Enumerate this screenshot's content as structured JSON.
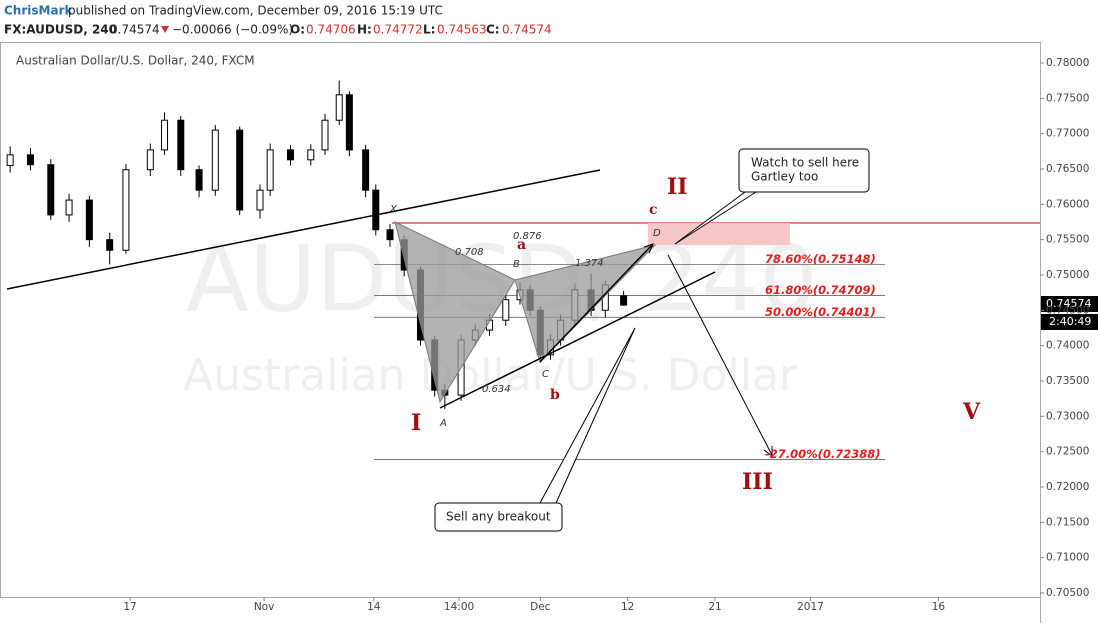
{
  "header": {
    "author": "ChrisMark",
    "published": "published on TradingView.com, December 09, 2016 15:19 UTC",
    "symbol": "FX:AUDUSD, 240",
    "change": "−0.00066 (−0.09%)",
    "o_label": "O:",
    "h_label": "H:",
    "l_label": "L:",
    "c_label": "C:"
  },
  "chart_data": {
    "type": "candlestick",
    "title": "Australian Dollar/U.S. Dollar, 240, FXCM",
    "watermark": "AUDUSD, 240",
    "watermark_sub": "Australian Dollar/U.S. Dollar",
    "countdown": "2:40:49",
    "x": [
      -59,
      -49,
      -39,
      -30,
      -20,
      -10,
      -2,
      10,
      17,
      25,
      34,
      42,
      54,
      64,
      69,
      79,
      89,
      96,
      103,
      108,
      116,
      121,
      128,
      135,
      143,
      150,
      155,
      163,
      170,
      177,
      185,
      192,
      197,
      202,
      207,
      212,
      219,
      227,
      234,
      243
    ],
    "open": [
      0.7655,
      0.767,
      0.7656,
      0.7585,
      0.7606,
      0.755,
      0.7535,
      0.7649,
      0.7677,
      0.7719,
      0.7649,
      0.762,
      0.7705,
      0.7592,
      0.762,
      0.7677,
      0.7663,
      0.7677,
      0.7719,
      0.7755,
      0.7677,
      0.762,
      0.7564,
      0.755,
      0.7507,
      0.7408,
      0.7337,
      0.733,
      0.7408,
      0.7422,
      0.7436,
      0.7465,
      0.7479,
      0.745,
      0.7387,
      0.7408,
      0.7436,
      0.7479,
      0.745,
      0.74706
    ],
    "high": [
      0.7682,
      0.768,
      0.7664,
      0.7615,
      0.7612,
      0.756,
      0.7657,
      0.7686,
      0.773,
      0.7725,
      0.7655,
      0.7712,
      0.771,
      0.7628,
      0.7686,
      0.7684,
      0.7685,
      0.7728,
      0.7775,
      0.776,
      0.7684,
      0.7628,
      0.7572,
      0.7556,
      0.7512,
      0.7414,
      0.7345,
      0.7415,
      0.743,
      0.7445,
      0.7472,
      0.749,
      0.7486,
      0.7456,
      0.7416,
      0.7444,
      0.7488,
      0.7502,
      0.7492,
      0.74772
    ],
    "low": [
      0.7645,
      0.7648,
      0.7578,
      0.7575,
      0.754,
      0.7515,
      0.753,
      0.764,
      0.767,
      0.764,
      0.761,
      0.7612,
      0.7585,
      0.758,
      0.7612,
      0.7655,
      0.7655,
      0.767,
      0.7712,
      0.7668,
      0.761,
      0.7556,
      0.754,
      0.7498,
      0.74,
      0.7328,
      0.731,
      0.7322,
      0.74,
      0.7414,
      0.7428,
      0.7458,
      0.7442,
      0.7376,
      0.738,
      0.74,
      0.7428,
      0.7442,
      0.744,
      0.74563
    ],
    "close": [
      0.767,
      0.7656,
      0.7585,
      0.7606,
      0.755,
      0.7535,
      0.7649,
      0.7677,
      0.7719,
      0.7649,
      0.762,
      0.7705,
      0.7592,
      0.762,
      0.7677,
      0.7663,
      0.7677,
      0.7719,
      0.7755,
      0.7677,
      0.762,
      0.7564,
      0.755,
      0.7507,
      0.7408,
      0.7337,
      0.733,
      0.7408,
      0.7422,
      0.7436,
      0.7465,
      0.7479,
      0.745,
      0.7387,
      0.7408,
      0.7436,
      0.7479,
      0.745,
      0.7486,
      0.74574
    ],
    "up_color": "#ffffff",
    "down_color": "#000000",
    "xlim": [
      -64,
      448
    ],
    "xticks": [
      {
        "value": 0,
        "label": "17"
      },
      {
        "value": 66,
        "label": "Nov"
      },
      {
        "value": 120,
        "label": "14"
      },
      {
        "value": 162,
        "label": "14:00"
      },
      {
        "value": 202,
        "label": "Dec"
      },
      {
        "value": 245,
        "label": "12"
      },
      {
        "value": 288,
        "label": "21"
      },
      {
        "value": 335,
        "label": "2017"
      },
      {
        "value": 398,
        "label": "16"
      }
    ],
    "ylim": [
      0.70443,
      0.78297
    ],
    "yticks": [
      {
        "value": 0.705,
        "label": "0.70500"
      },
      {
        "value": 0.71,
        "label": "0.71000"
      },
      {
        "value": 0.715,
        "label": "0.71500"
      },
      {
        "value": 0.72,
        "label": "0.72000"
      },
      {
        "value": 0.725,
        "label": "0.72500"
      },
      {
        "value": 0.73,
        "label": "0.73000"
      },
      {
        "value": 0.735,
        "label": "0.73500"
      },
      {
        "value": 0.74,
        "label": "0.74000"
      },
      {
        "value": 0.745,
        "label": "0.74500"
      },
      {
        "value": 0.75,
        "label": "0.75000"
      },
      {
        "value": 0.755,
        "label": "0.75500"
      },
      {
        "value": 0.76,
        "label": "0.76000"
      },
      {
        "value": 0.765,
        "label": "0.76500"
      },
      {
        "value": 0.77,
        "label": "0.77000"
      },
      {
        "value": 0.775,
        "label": "0.77500"
      },
      {
        "value": 0.78,
        "label": "0.78000"
      }
    ],
    "fib_levels": [
      {
        "label": "78.60%(0.75148)",
        "value": 0.75148
      },
      {
        "label": "61.80%(0.74709)",
        "value": 0.74709
      },
      {
        "label": "50.00%(0.74401)",
        "value": 0.74401
      },
      {
        "label": "-27.00%(0.72388)",
        "value": 0.72388
      }
    ],
    "annotations": [
      "X",
      "A",
      "B",
      "C",
      "D",
      "0.708",
      "0.876",
      "1.374",
      "0.634",
      "I",
      "II",
      "III",
      "V",
      "a",
      "b",
      "c",
      "Watch to sell here",
      "Gartley too",
      "Sell any breakout"
    ]
  }
}
